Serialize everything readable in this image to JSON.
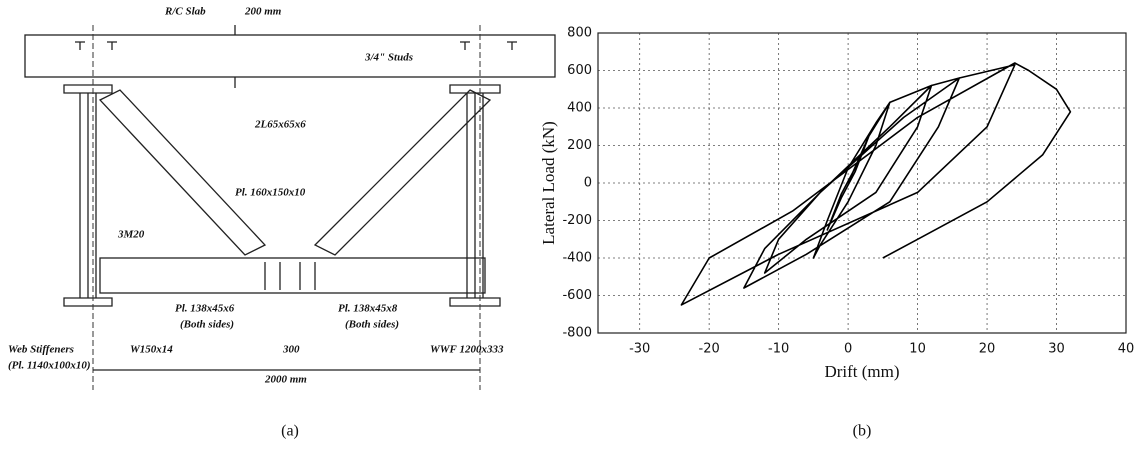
{
  "diagram": {
    "labels": {
      "slab": "R/C Slab",
      "slab_depth": "200 mm",
      "studs": "3/4\" Studs",
      "brace": "2L65x65x6",
      "gusset": "Pl. 160x150x10",
      "bolts": "3M20",
      "plate_left": "Pl. 138x45x6",
      "plate_left_note": "(Both sides)",
      "plate_right": "Pl. 138x45x8",
      "plate_right_note": "(Both sides)",
      "stiffeners": "Web Stiffeners",
      "stiffeners_plate": "(Pl. 1140x100x10)",
      "beam": "W150x14",
      "gap": "300",
      "span": "2000 mm",
      "column": "WWF 1200x333"
    },
    "caption": "(a)"
  },
  "chart_data": {
    "type": "line",
    "caption": "(b)",
    "xlabel": "Drift (mm)",
    "ylabel": "Lateral Load (kN)",
    "xlim": [
      -36,
      40
    ],
    "ylim": [
      -800,
      800
    ],
    "xticks": [
      -30,
      -20,
      -10,
      0,
      10,
      20,
      30,
      40
    ],
    "yticks": [
      -800,
      -600,
      -400,
      -200,
      0,
      200,
      400,
      600,
      800
    ],
    "grid": true,
    "color": "#000000",
    "x": [
      0,
      3,
      1,
      -1,
      -3,
      -1,
      1,
      3,
      6,
      4,
      0,
      -4,
      -5,
      -3,
      0,
      4,
      6,
      12,
      10,
      4,
      -6,
      -12,
      -10,
      -4,
      6,
      12,
      16,
      13,
      6,
      -6,
      -15,
      -12,
      -4,
      8,
      16,
      24,
      20,
      10,
      -10,
      -24,
      -20,
      -8,
      10,
      24,
      26,
      30,
      32,
      28,
      20,
      10,
      5
    ],
    "values": [
      0,
      250,
      80,
      -60,
      -250,
      -80,
      60,
      250,
      430,
      200,
      -100,
      -330,
      -400,
      -200,
      80,
      320,
      430,
      520,
      300,
      -50,
      -300,
      -480,
      -300,
      -50,
      300,
      520,
      560,
      300,
      -100,
      -380,
      -560,
      -350,
      -50,
      350,
      560,
      630,
      300,
      -50,
      -380,
      -650,
      -400,
      -150,
      350,
      640,
      600,
      500,
      380,
      150,
      -100,
      -300,
      -400
    ]
  }
}
